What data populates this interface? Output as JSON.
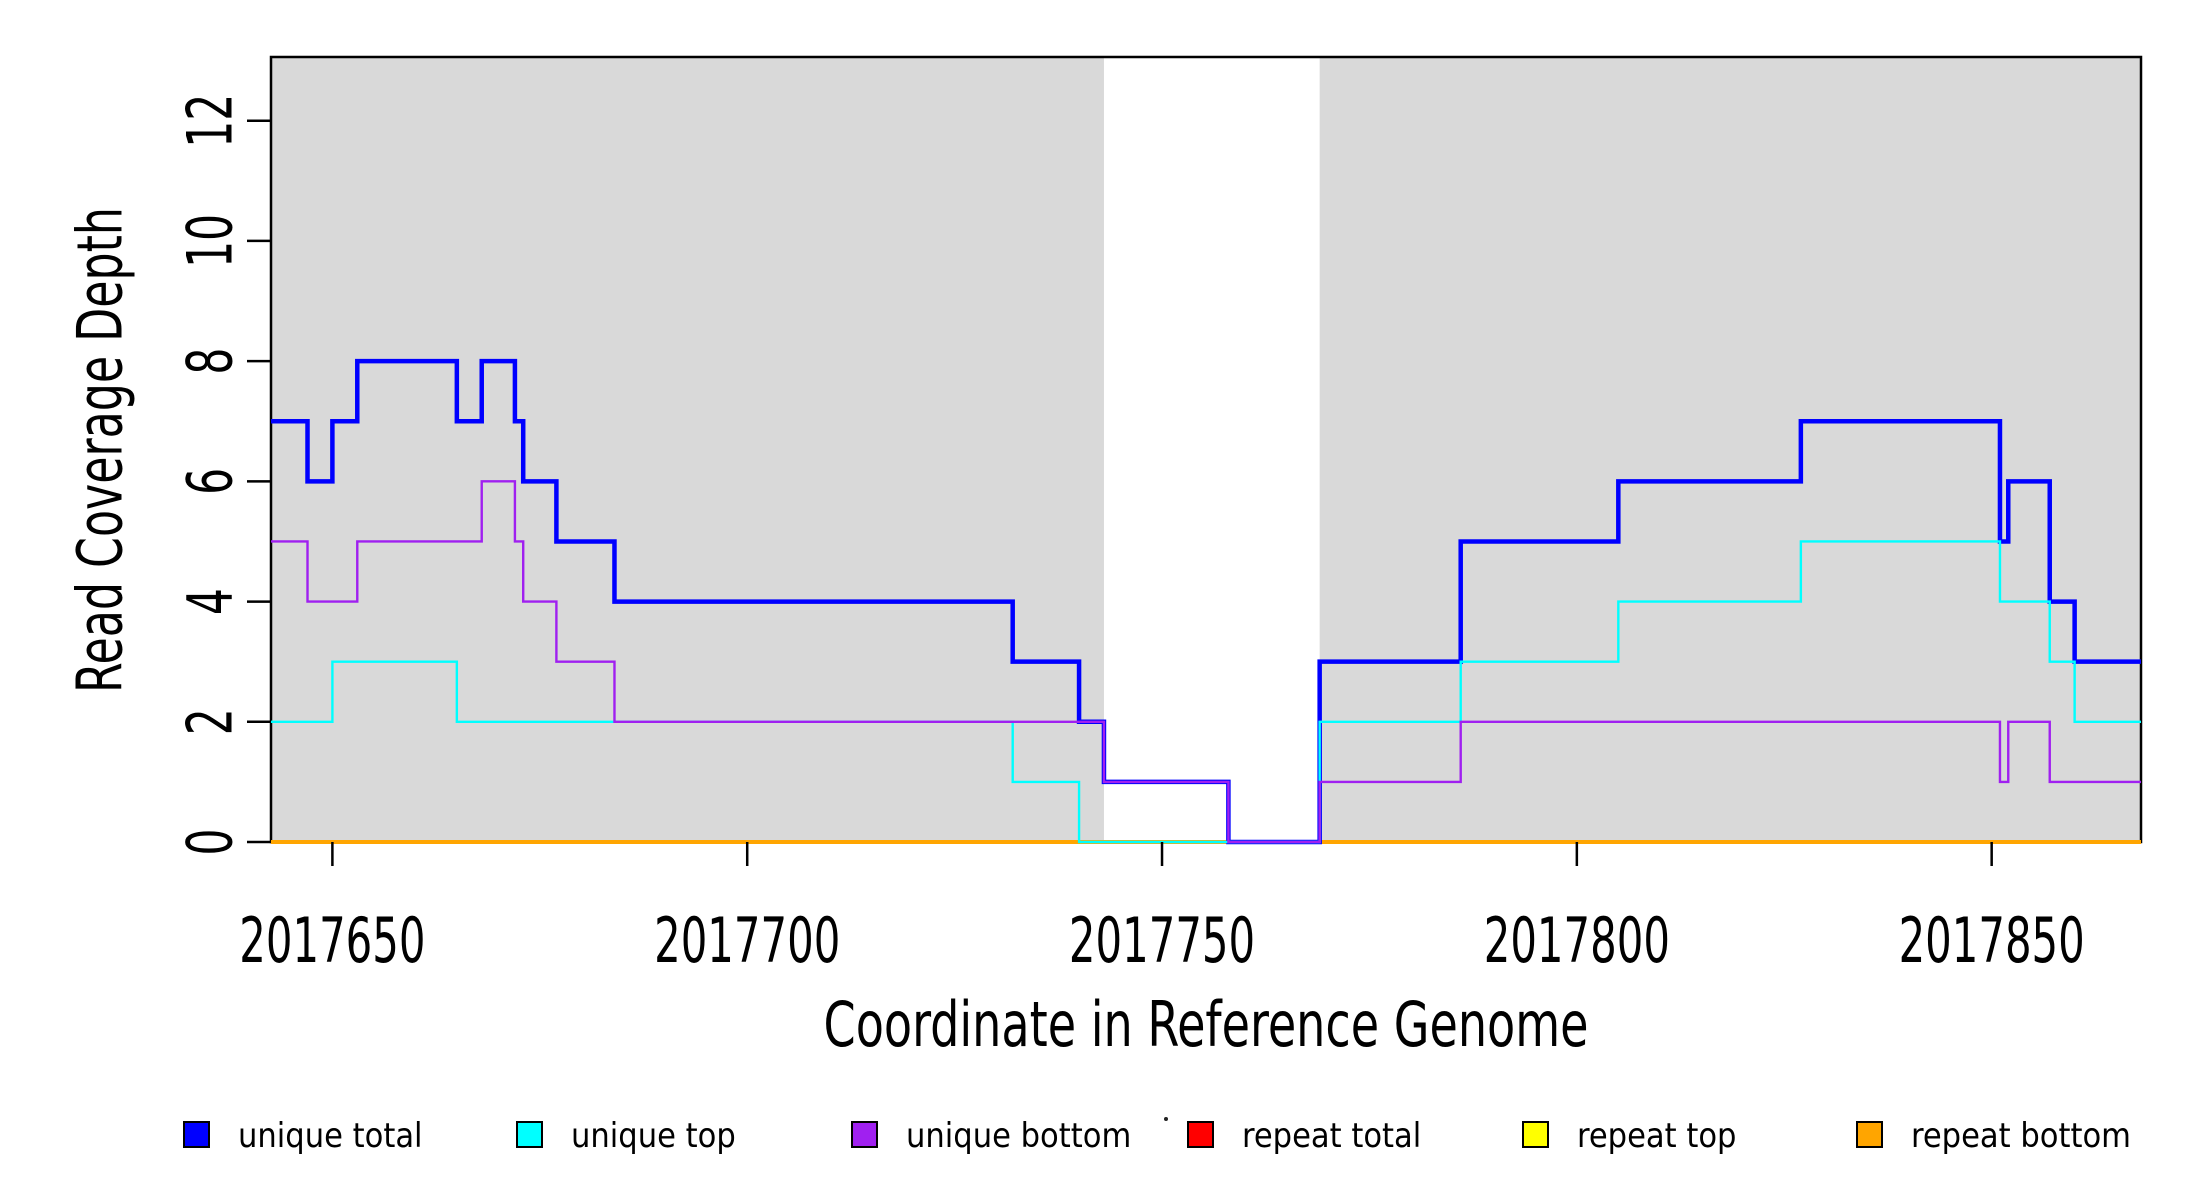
{
  "chart_data": {
    "type": "line",
    "subtype": "step-hv",
    "xlabel": "Coordinate in Reference Genome",
    "ylabel": "Read Coverage Depth",
    "xlim": [
      2017642.6,
      2017868
    ],
    "ylim": [
      0,
      13.06
    ],
    "grid": false,
    "x_ticks": [
      {
        "value": 2017650,
        "label": "2017650"
      },
      {
        "value": 2017700,
        "label": "2017700"
      },
      {
        "value": 2017750,
        "label": "2017750"
      },
      {
        "value": 2017800,
        "label": "2017800"
      },
      {
        "value": 2017850,
        "label": "2017850"
      }
    ],
    "y_ticks": [
      {
        "value": 0,
        "label": "0"
      },
      {
        "value": 2,
        "label": "2"
      },
      {
        "value": 4,
        "label": "4"
      },
      {
        "value": 6,
        "label": "6"
      },
      {
        "value": 8,
        "label": "8"
      },
      {
        "value": 10,
        "label": "10"
      },
      {
        "value": 12,
        "label": "12"
      }
    ],
    "shaded_regions": [
      {
        "x0": 2017642.6,
        "x1": 2017743,
        "color": "#D9D9D9"
      },
      {
        "x0": 2017769,
        "x1": 2017868,
        "color": "#D9D9D9"
      }
    ],
    "series": [
      {
        "name": "repeat total",
        "color": "#FF0000",
        "line_width": 4,
        "points": [
          [
            2017642.6,
            0
          ],
          [
            2017868,
            0
          ]
        ]
      },
      {
        "name": "repeat top",
        "color": "#FFFF00",
        "line_width": 4,
        "points": [
          [
            2017642.6,
            0
          ],
          [
            2017868,
            0
          ]
        ]
      },
      {
        "name": "repeat bottom",
        "color": "#FFA500",
        "line_width": 4,
        "points": [
          [
            2017642.6,
            0
          ],
          [
            2017868,
            0
          ]
        ]
      },
      {
        "name": "unique total",
        "color": "#0000FF",
        "line_width": 4.5,
        "points": [
          [
            2017642.6,
            7
          ],
          [
            2017647,
            6
          ],
          [
            2017650,
            7
          ],
          [
            2017653,
            8
          ],
          [
            2017665,
            7
          ],
          [
            2017668,
            8
          ],
          [
            2017672,
            7
          ],
          [
            2017673,
            6
          ],
          [
            2017677,
            5
          ],
          [
            2017684,
            4
          ],
          [
            2017732,
            3
          ],
          [
            2017740,
            2
          ],
          [
            2017743,
            1
          ],
          [
            2017758,
            0
          ],
          [
            2017769,
            3
          ],
          [
            2017786,
            5
          ],
          [
            2017805,
            6
          ],
          [
            2017827,
            7
          ],
          [
            2017851,
            5
          ],
          [
            2017852,
            6
          ],
          [
            2017857,
            4
          ],
          [
            2017860,
            3
          ],
          [
            2017868,
            3
          ]
        ]
      },
      {
        "name": "unique top",
        "color": "#00FFFF",
        "line_width": 2.4,
        "points": [
          [
            2017642.6,
            2
          ],
          [
            2017650,
            3
          ],
          [
            2017665,
            2
          ],
          [
            2017732,
            1
          ],
          [
            2017740,
            0
          ],
          [
            2017769,
            2
          ],
          [
            2017786,
            3
          ],
          [
            2017805,
            4
          ],
          [
            2017827,
            5
          ],
          [
            2017851,
            4
          ],
          [
            2017857,
            3
          ],
          [
            2017860,
            2
          ],
          [
            2017868,
            2
          ]
        ]
      },
      {
        "name": "unique bottom",
        "color": "#A020F0",
        "line_width": 2.4,
        "points": [
          [
            2017642.6,
            5
          ],
          [
            2017647,
            4
          ],
          [
            2017653,
            5
          ],
          [
            2017668,
            6
          ],
          [
            2017672,
            5
          ],
          [
            2017673,
            4
          ],
          [
            2017677,
            3
          ],
          [
            2017684,
            2
          ],
          [
            2017743,
            1
          ],
          [
            2017758,
            0
          ],
          [
            2017769,
            1
          ],
          [
            2017786,
            2
          ],
          [
            2017851,
            1
          ],
          [
            2017852,
            2
          ],
          [
            2017857,
            1
          ],
          [
            2017868,
            1
          ]
        ]
      }
    ],
    "legend": {
      "position": "bottom",
      "entries": [
        {
          "label": "unique total",
          "color": "#0000FF"
        },
        {
          "label": "unique top",
          "color": "#00FFFF"
        },
        {
          "label": "unique bottom",
          "color": "#A020F0"
        },
        {
          "label": "repeat total",
          "color": "#FF0000"
        },
        {
          "label": "repeat top",
          "color": "#FFFF00"
        },
        {
          "label": "repeat bottom",
          "color": "#FFA500"
        }
      ]
    },
    "colors": {
      "panel_shade": "#D9D9D9",
      "background": "#FFFFFF",
      "axis": "#000000"
    }
  }
}
